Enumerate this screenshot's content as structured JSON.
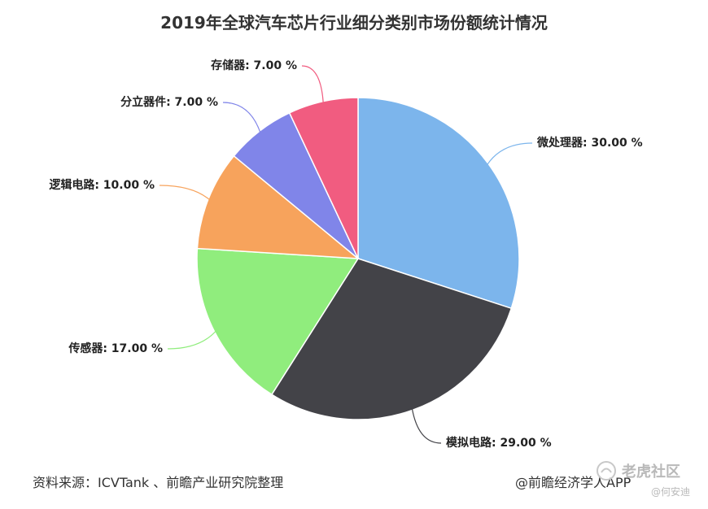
{
  "chart_data": {
    "type": "pie",
    "title": "2019年全球汽车芯片行业细分类别市场份额统计情况",
    "slices": [
      {
        "label": "微处理器",
        "value": 30.0,
        "display": "微处理器: 30.00 %",
        "color": "#7cb5ec"
      },
      {
        "label": "模拟电路",
        "value": 29.0,
        "display": "模拟电路: 29.00 %",
        "color": "#434348"
      },
      {
        "label": "传感器",
        "value": 17.0,
        "display": "传感器: 17.00 %",
        "color": "#90ed7d"
      },
      {
        "label": "逻辑电路",
        "value": 10.0,
        "display": "逻辑电路: 10.00 %",
        "color": "#f7a35c"
      },
      {
        "label": "分立器件",
        "value": 7.0,
        "display": "分立器件: 7.00 %",
        "color": "#8085e9"
      },
      {
        "label": "存储器",
        "value": 7.0,
        "display": "存储器: 7.00 %",
        "color": "#f15c80"
      }
    ]
  },
  "footer": {
    "source": "资料来源：ICVTank 、前瞻产业研究院整理",
    "brand": "@前瞻经济学人APP"
  },
  "watermark": {
    "site": "老虎社区",
    "author": "@何安迪"
  }
}
